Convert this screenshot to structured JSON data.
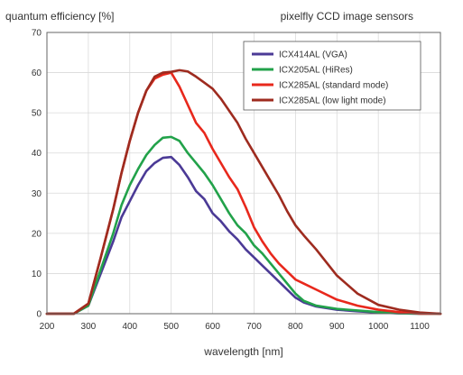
{
  "chart_data": {
    "type": "line",
    "title": "pixelfly CCD image sensors",
    "ylabel": "quantum efficiency [%]",
    "xlabel": "wavelength [nm]",
    "xlim": [
      200,
      1150
    ],
    "ylim": [
      0,
      70
    ],
    "xticks": [
      200,
      300,
      400,
      500,
      600,
      700,
      800,
      900,
      1000,
      1100
    ],
    "yticks": [
      0,
      10,
      20,
      30,
      40,
      50,
      60,
      70
    ],
    "grid": true,
    "legend_position": "top-right",
    "series": [
      {
        "name": "ICX414AL (VGA)",
        "color": "#4b3a96",
        "x": [
          200,
          265,
          300,
          330,
          360,
          380,
          400,
          420,
          440,
          460,
          480,
          500,
          520,
          540,
          560,
          580,
          600,
          620,
          640,
          660,
          680,
          700,
          720,
          740,
          760,
          780,
          800,
          820,
          850,
          900,
          950,
          1000,
          1050,
          1100,
          1150
        ],
        "y": [
          0,
          0,
          2,
          10,
          18,
          24,
          28,
          32,
          35.5,
          37.5,
          38.8,
          39,
          37,
          34,
          30.5,
          28.5,
          25,
          23,
          20.5,
          18.5,
          16,
          14,
          12,
          10,
          8,
          6,
          4,
          2.8,
          1.8,
          1,
          0.6,
          0.3,
          0.1,
          0,
          0
        ]
      },
      {
        "name": "ICX205AL (HiRes)",
        "color": "#22a24a",
        "x": [
          200,
          265,
          300,
          330,
          360,
          380,
          400,
          420,
          440,
          460,
          480,
          500,
          520,
          540,
          560,
          580,
          600,
          620,
          640,
          660,
          680,
          700,
          720,
          740,
          760,
          780,
          800,
          820,
          850,
          900,
          950,
          1000,
          1050,
          1100,
          1150
        ],
        "y": [
          0,
          0,
          2,
          11,
          20,
          27,
          32,
          36,
          39.5,
          42,
          43.8,
          44,
          43,
          40,
          37.5,
          35,
          32,
          28.5,
          25,
          22,
          20,
          17,
          15,
          12.5,
          10,
          7.5,
          5,
          3.2,
          2,
          1.2,
          0.8,
          0.4,
          0.1,
          0,
          0
        ]
      },
      {
        "name": "ICX285AL (standard mode)",
        "color": "#e8281c",
        "x": [
          200,
          265,
          300,
          330,
          360,
          380,
          400,
          420,
          440,
          460,
          480,
          500,
          520,
          540,
          560,
          580,
          600,
          620,
          640,
          660,
          680,
          700,
          720,
          740,
          760,
          780,
          800,
          820,
          850,
          900,
          950,
          1000,
          1050,
          1100,
          1150
        ],
        "y": [
          0,
          0,
          2.5,
          14,
          26,
          35,
          43,
          50,
          55.5,
          58.5,
          59.5,
          60,
          56.5,
          52,
          47.5,
          45,
          41,
          37.5,
          34,
          31,
          26.5,
          21.5,
          18,
          15,
          12.5,
          10.5,
          8.5,
          7.5,
          6,
          3.5,
          2,
          1,
          0.4,
          0,
          0
        ]
      },
      {
        "name": "ICX285AL (low light mode)",
        "color": "#9e2b1f",
        "x": [
          200,
          265,
          300,
          330,
          360,
          380,
          400,
          420,
          440,
          460,
          480,
          500,
          520,
          540,
          560,
          580,
          600,
          620,
          640,
          660,
          680,
          700,
          720,
          740,
          760,
          780,
          800,
          820,
          850,
          900,
          950,
          1000,
          1050,
          1100,
          1150
        ],
        "y": [
          0,
          0,
          2.5,
          14,
          26,
          35,
          43,
          50,
          55.5,
          59,
          60,
          60.2,
          60.6,
          60.3,
          59,
          57.5,
          56,
          53.5,
          50.5,
          47.5,
          43.5,
          40,
          36.5,
          33,
          29.5,
          25.5,
          22,
          19.5,
          16,
          9.5,
          5,
          2.2,
          1,
          0.3,
          0
        ]
      }
    ]
  }
}
